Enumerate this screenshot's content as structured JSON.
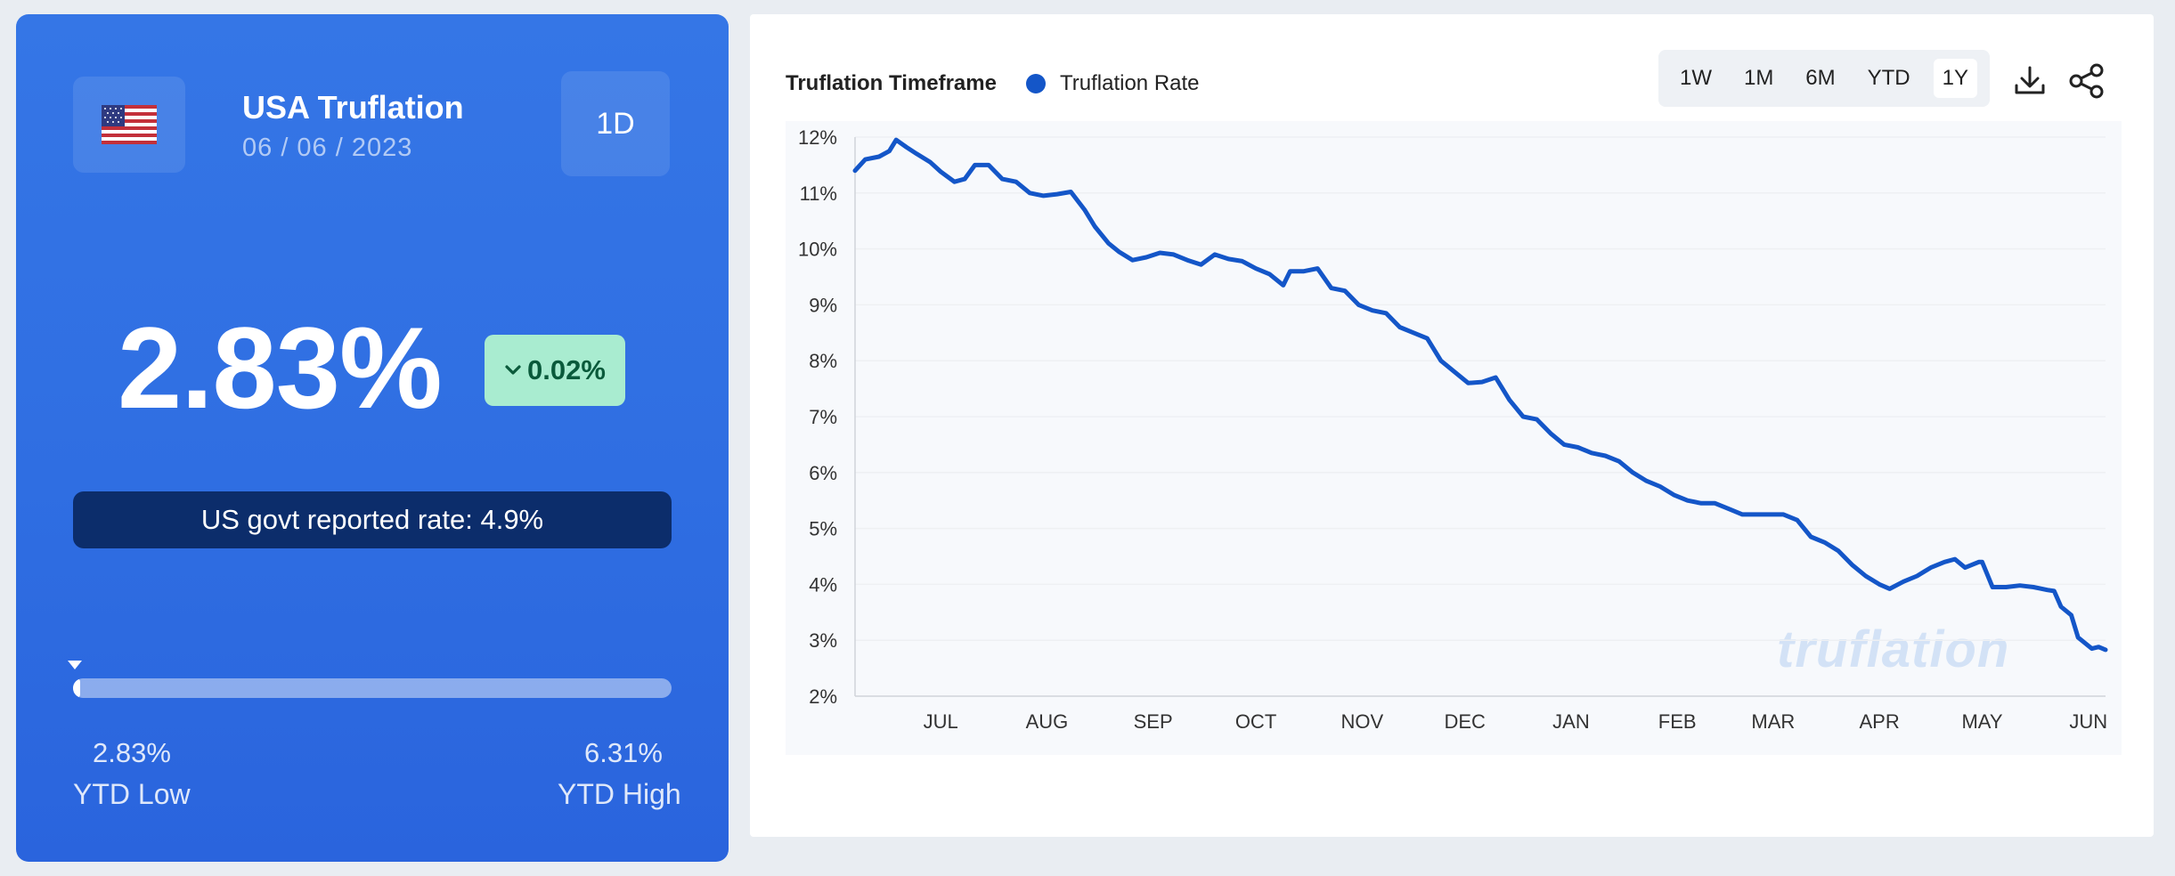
{
  "summary": {
    "country_flag": "us-flag-icon",
    "title": "USA Truflation",
    "date": "06 / 06 / 2023",
    "period": "1D",
    "rate": "2.83%",
    "change": "0.02%",
    "change_direction": "down",
    "govt_rate_label": "US govt reported rate: 4.9%",
    "ytd_low_value": "2.83%",
    "ytd_low_label": "YTD Low",
    "ytd_high_value": "6.31%",
    "ytd_high_label": "YTD High",
    "range_position": 0.0
  },
  "chart_header": {
    "title": "Truflation Timeframe",
    "legend_label": "Truflation Rate",
    "timeframes": [
      "1W",
      "1M",
      "6M",
      "YTD",
      "1Y"
    ],
    "active_timeframe": "1Y",
    "download_icon": "download-icon",
    "share_icon": "share-icon",
    "watermark": "truflation"
  },
  "colors": {
    "line": "#1456c8",
    "card_blue": "#2f6ee2",
    "badge_green": "#a9ecd0",
    "govt_bar": "#0c2d6b"
  },
  "chart_data": {
    "type": "line",
    "title": "Truflation Timeframe",
    "xlabel": "",
    "ylabel": "",
    "ylim": [
      2,
      12
    ],
    "yticks": [
      "12%",
      "11%",
      "10%",
      "9%",
      "8%",
      "7%",
      "6%",
      "5%",
      "4%",
      "3%",
      "2%"
    ],
    "x_tick_labels": [
      "JUL",
      "AUG",
      "SEP",
      "OCT",
      "NOV",
      "DEC",
      "JAN",
      "FEB",
      "MAR",
      "APR",
      "MAY",
      "JUN"
    ],
    "x_tick_dates": [
      "2022-07-01",
      "2022-08-01",
      "2022-09-01",
      "2022-10-01",
      "2022-11-01",
      "2022-12-01",
      "2023-01-01",
      "2023-02-01",
      "2023-03-01",
      "2023-04-01",
      "2023-05-01",
      "2023-06-01"
    ],
    "x_range": [
      "2022-06-06",
      "2023-06-06"
    ],
    "grid": true,
    "legend_position": "top-left",
    "series": [
      {
        "name": "Truflation Rate",
        "points": [
          [
            "2022-06-06",
            11.4
          ],
          [
            "2022-06-09",
            11.6
          ],
          [
            "2022-06-13",
            11.65
          ],
          [
            "2022-06-16",
            11.75
          ],
          [
            "2022-06-18",
            11.95
          ],
          [
            "2022-06-21",
            11.82
          ],
          [
            "2022-06-24",
            11.7
          ],
          [
            "2022-06-28",
            11.55
          ],
          [
            "2022-07-01",
            11.38
          ],
          [
            "2022-07-05",
            11.2
          ],
          [
            "2022-07-08",
            11.25
          ],
          [
            "2022-07-11",
            11.5
          ],
          [
            "2022-07-15",
            11.5
          ],
          [
            "2022-07-19",
            11.25
          ],
          [
            "2022-07-23",
            11.2
          ],
          [
            "2022-07-27",
            11.0
          ],
          [
            "2022-07-31",
            10.95
          ],
          [
            "2022-08-04",
            10.98
          ],
          [
            "2022-08-08",
            11.02
          ],
          [
            "2022-08-12",
            10.7
          ],
          [
            "2022-08-15",
            10.4
          ],
          [
            "2022-08-19",
            10.1
          ],
          [
            "2022-08-22",
            9.95
          ],
          [
            "2022-08-26",
            9.8
          ],
          [
            "2022-08-30",
            9.85
          ],
          [
            "2022-09-03",
            9.93
          ],
          [
            "2022-09-07",
            9.9
          ],
          [
            "2022-09-11",
            9.8
          ],
          [
            "2022-09-15",
            9.72
          ],
          [
            "2022-09-19",
            9.9
          ],
          [
            "2022-09-23",
            9.82
          ],
          [
            "2022-09-27",
            9.78
          ],
          [
            "2022-10-01",
            9.65
          ],
          [
            "2022-10-05",
            9.55
          ],
          [
            "2022-10-09",
            9.35
          ],
          [
            "2022-10-11",
            9.6
          ],
          [
            "2022-10-15",
            9.6
          ],
          [
            "2022-10-19",
            9.65
          ],
          [
            "2022-10-23",
            9.3
          ],
          [
            "2022-10-27",
            9.25
          ],
          [
            "2022-10-31",
            9.0
          ],
          [
            "2022-11-04",
            8.9
          ],
          [
            "2022-11-08",
            8.85
          ],
          [
            "2022-11-12",
            8.6
          ],
          [
            "2022-11-16",
            8.5
          ],
          [
            "2022-11-20",
            8.4
          ],
          [
            "2022-11-24",
            8.0
          ],
          [
            "2022-11-28",
            7.8
          ],
          [
            "2022-12-02",
            7.6
          ],
          [
            "2022-12-06",
            7.62
          ],
          [
            "2022-12-10",
            7.7
          ],
          [
            "2022-12-14",
            7.3
          ],
          [
            "2022-12-18",
            7.0
          ],
          [
            "2022-12-22",
            6.95
          ],
          [
            "2022-12-26",
            6.7
          ],
          [
            "2022-12-30",
            6.5
          ],
          [
            "2023-01-03",
            6.45
          ],
          [
            "2023-01-07",
            6.35
          ],
          [
            "2023-01-11",
            6.3
          ],
          [
            "2023-01-15",
            6.2
          ],
          [
            "2023-01-19",
            6.0
          ],
          [
            "2023-01-23",
            5.85
          ],
          [
            "2023-01-27",
            5.75
          ],
          [
            "2023-01-31",
            5.6
          ],
          [
            "2023-02-04",
            5.5
          ],
          [
            "2023-02-08",
            5.45
          ],
          [
            "2023-02-12",
            5.45
          ],
          [
            "2023-02-16",
            5.35
          ],
          [
            "2023-02-20",
            5.25
          ],
          [
            "2023-02-24",
            5.25
          ],
          [
            "2023-02-28",
            5.25
          ],
          [
            "2023-03-04",
            5.25
          ],
          [
            "2023-03-08",
            5.15
          ],
          [
            "2023-03-12",
            4.85
          ],
          [
            "2023-03-16",
            4.75
          ],
          [
            "2023-03-20",
            4.6
          ],
          [
            "2023-03-24",
            4.35
          ],
          [
            "2023-03-28",
            4.15
          ],
          [
            "2023-04-01",
            4.0
          ],
          [
            "2023-04-04",
            3.92
          ],
          [
            "2023-04-08",
            4.05
          ],
          [
            "2023-04-12",
            4.15
          ],
          [
            "2023-04-16",
            4.3
          ],
          [
            "2023-04-20",
            4.4
          ],
          [
            "2023-04-23",
            4.45
          ],
          [
            "2023-04-26",
            4.3
          ],
          [
            "2023-04-30",
            4.4
          ],
          [
            "2023-05-01",
            4.4
          ],
          [
            "2023-05-04",
            3.95
          ],
          [
            "2023-05-08",
            3.95
          ],
          [
            "2023-05-12",
            3.98
          ],
          [
            "2023-05-16",
            3.95
          ],
          [
            "2023-05-20",
            3.9
          ],
          [
            "2023-05-22",
            3.88
          ],
          [
            "2023-05-24",
            3.6
          ],
          [
            "2023-05-27",
            3.45
          ],
          [
            "2023-05-29",
            3.05
          ],
          [
            "2023-05-31",
            2.95
          ],
          [
            "2023-06-02",
            2.85
          ],
          [
            "2023-06-04",
            2.88
          ],
          [
            "2023-06-06",
            2.83
          ]
        ]
      }
    ]
  }
}
